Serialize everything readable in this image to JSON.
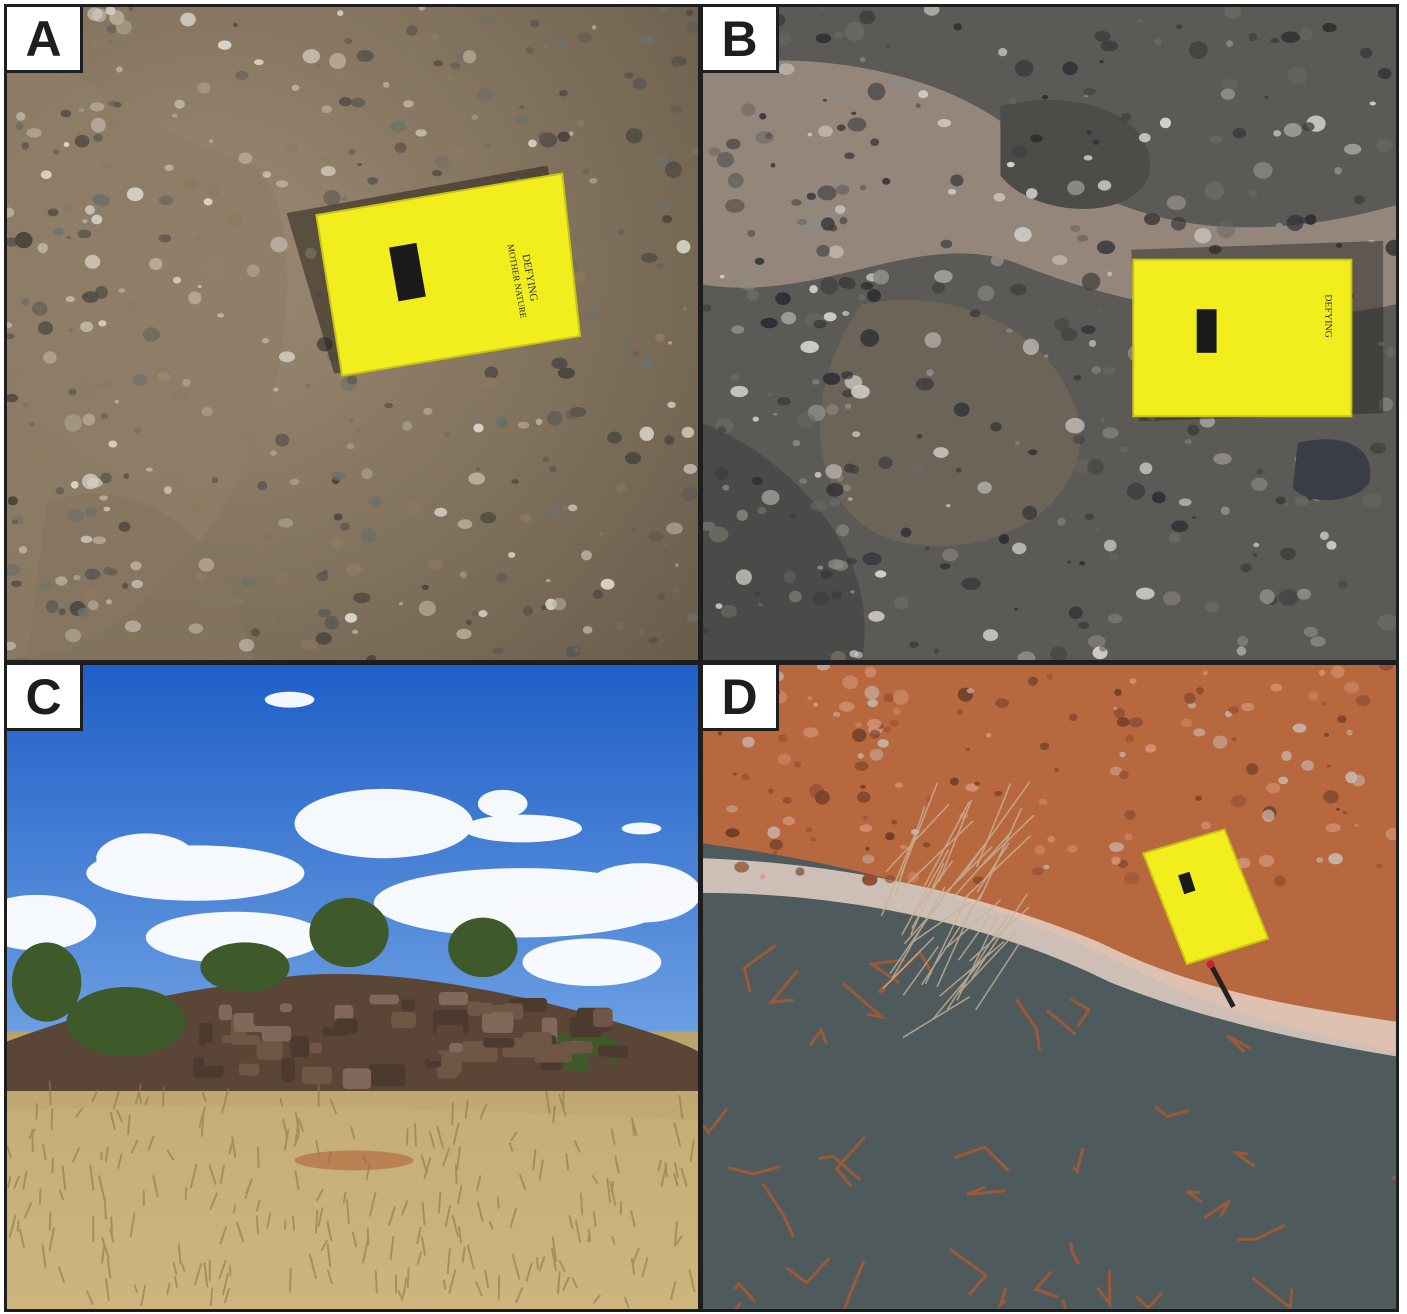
{
  "panels": [
    {
      "label": "A"
    },
    {
      "label": "B"
    },
    {
      "label": "C"
    },
    {
      "label": "D"
    }
  ],
  "notebook": {
    "brand_line1": "DEFYING",
    "brand_line2": "MOTHER NATURE"
  },
  "colors": {
    "frame": "#1e1e1e",
    "notebook_yellow": "#f2ee1e",
    "sky_blue": "#2f6fd0",
    "red_soil": "#b8683e",
    "grey_rock": "#4f5a5c"
  }
}
